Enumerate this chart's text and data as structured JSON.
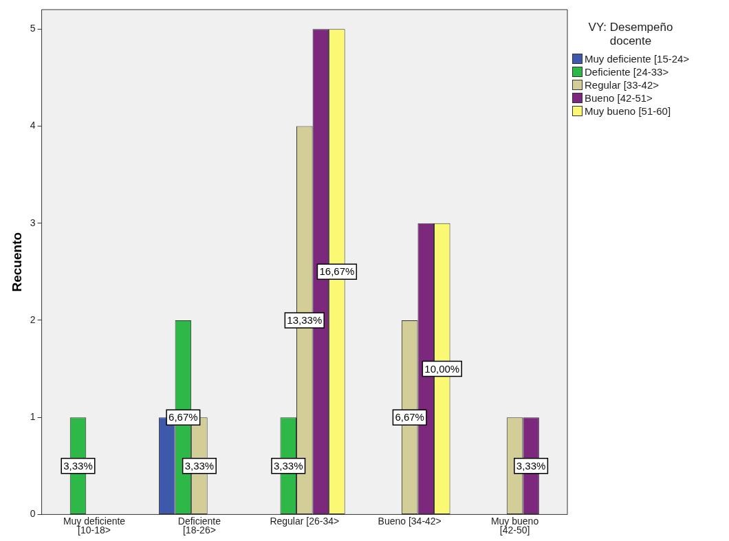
{
  "chart_data": {
    "type": "bar",
    "ylabel": "Recuento",
    "legend_title": "VY: Desempeño docente",
    "legend": "right",
    "grid": false,
    "categories": [
      "Muy deficiente [10-18>",
      "Deficiente [18-26>",
      "Regular [26-34>",
      "Bueno [34-42>",
      "Muy bueno [42-50]"
    ],
    "annotations": [
      "3,33%",
      "6,67%",
      "3,33%",
      "3,33%",
      "13,33%",
      "16,67%",
      "6,67%",
      "10,00%",
      "3,33%"
    ],
    "ylim": [
      0,
      5.2
    ],
    "yticks": [
      0,
      1,
      2,
      3,
      4,
      5
    ],
    "series": [
      {
        "name": "Muy deficiente [15-24>",
        "color": "#3e58ac",
        "values": [
          null,
          1,
          null,
          null,
          null
        ]
      },
      {
        "name": "Deficiente [24-33>",
        "color": "#2eb848",
        "values": [
          1,
          2,
          1,
          null,
          null
        ]
      },
      {
        "name": "Regular [33-42>",
        "color": "#d3ce97",
        "values": [
          null,
          1,
          4,
          2,
          1
        ]
      },
      {
        "name": "Bueno [42-51>",
        "color": "#7c287d",
        "values": [
          null,
          null,
          5,
          3,
          1
        ]
      },
      {
        "name": "Muy bueno [51-60]",
        "color": "#fbf873",
        "values": [
          null,
          null,
          5,
          3,
          null
        ]
      }
    ]
  }
}
